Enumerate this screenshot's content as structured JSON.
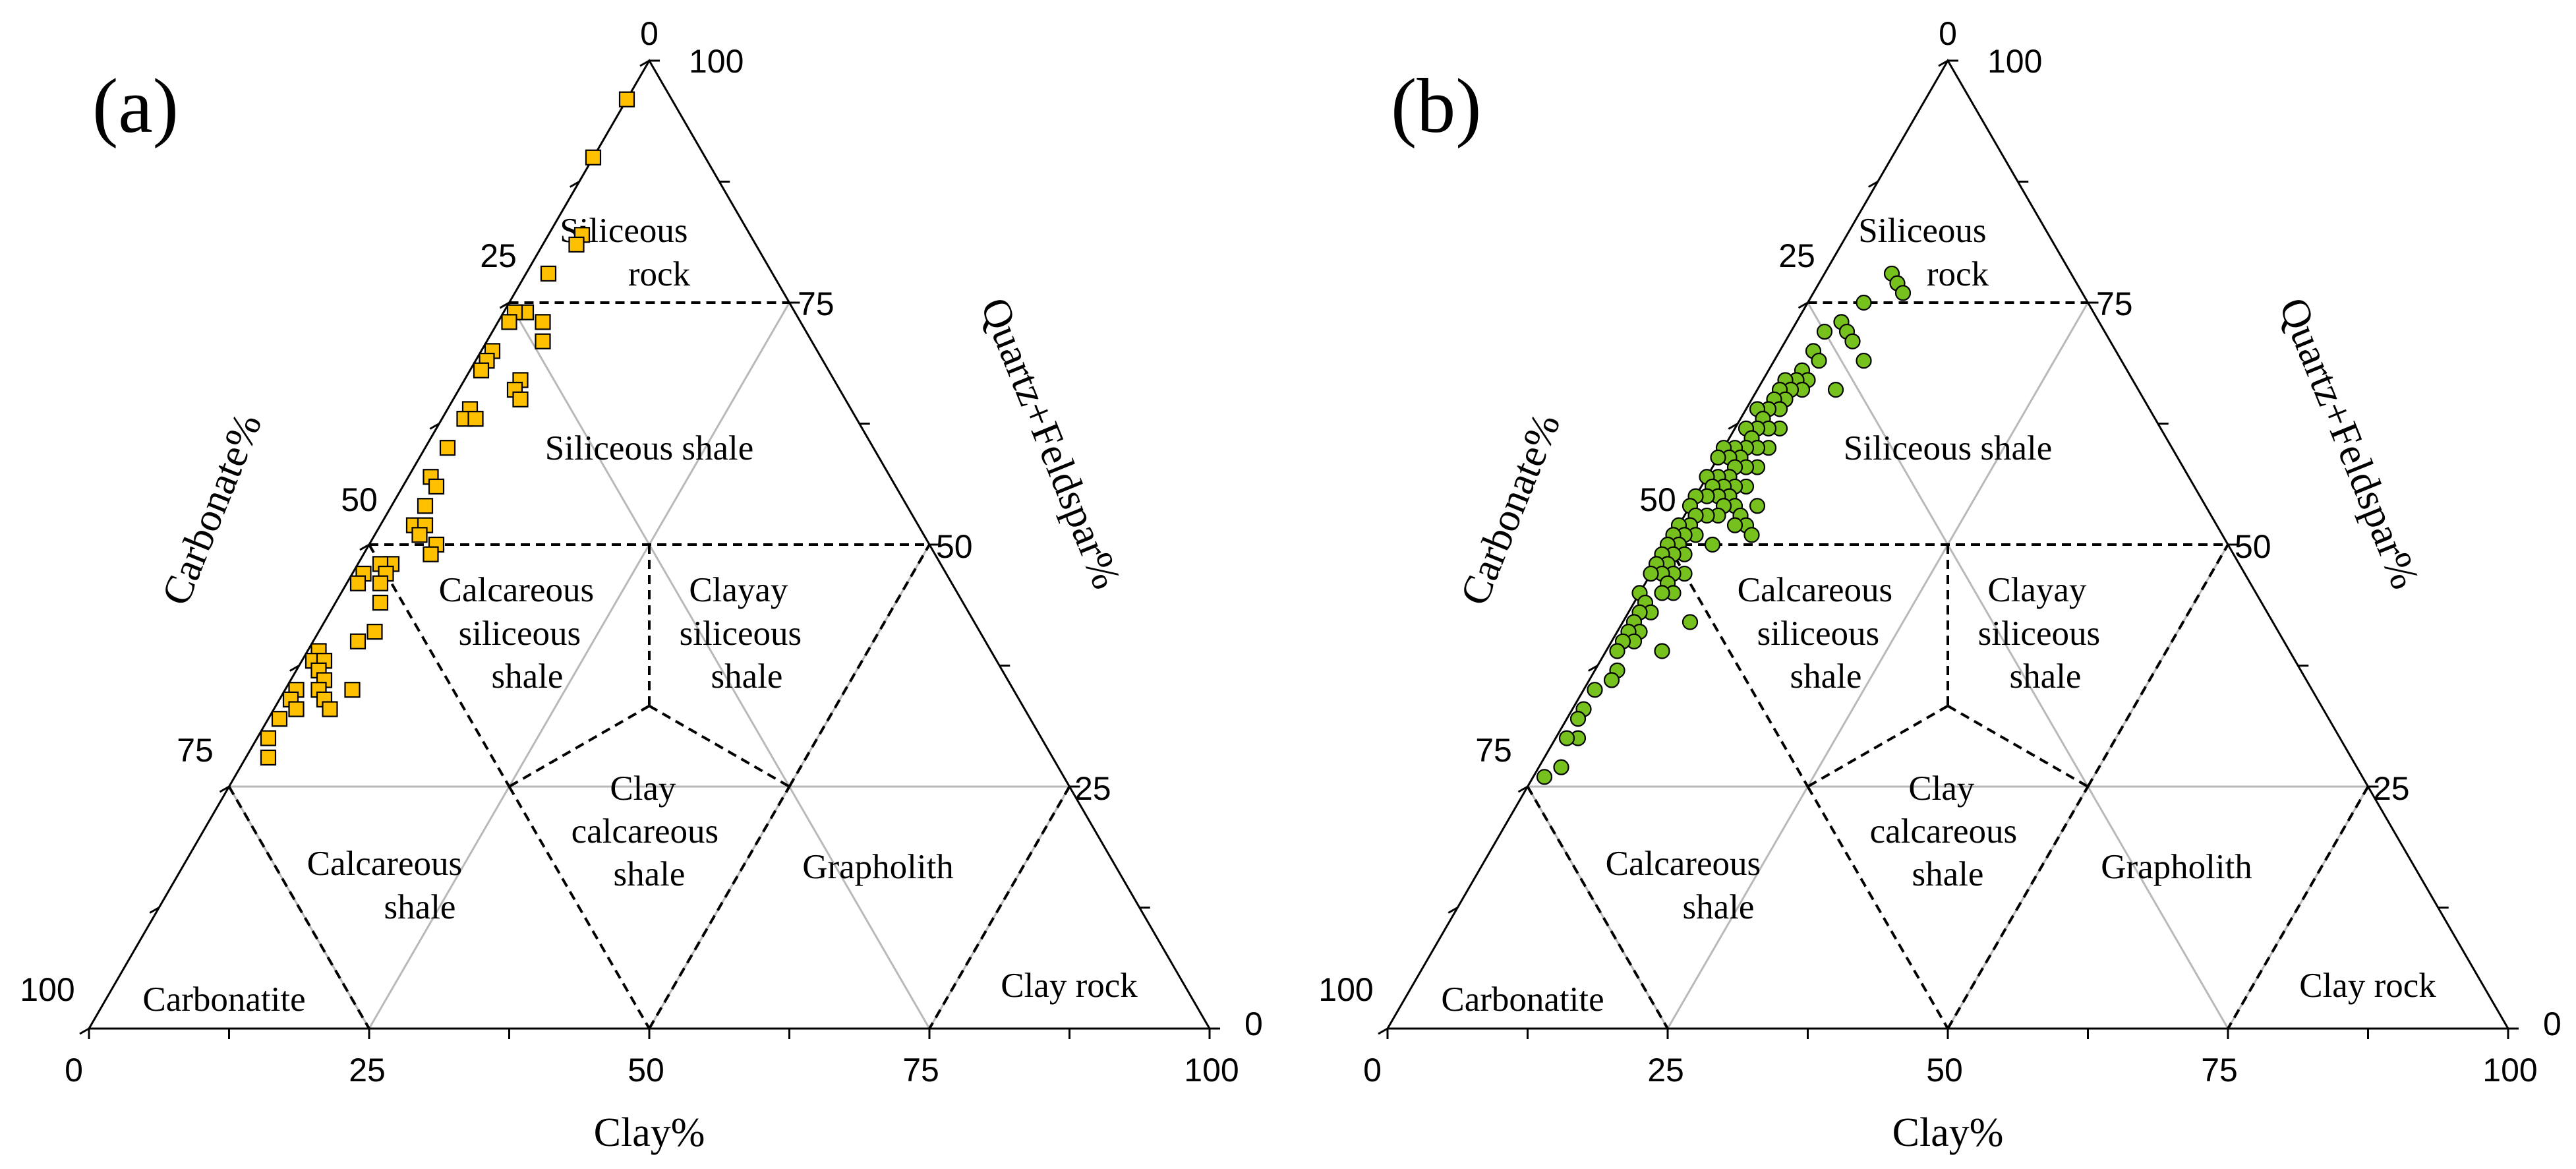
{
  "chart_data": [
    {
      "type": "scatter",
      "panel_label": "(a)",
      "marker": "square",
      "marker_color": "#FFC000",
      "axes": {
        "quartz_feldspar_title": "Quartz+Feldspar%",
        "carbonate_title": "Carbonate%",
        "clay_title": "Clay%",
        "ticks": [
          0,
          25,
          50,
          75,
          100
        ],
        "tick_labels": [
          "0",
          "25",
          "50",
          "75",
          "100"
        ]
      },
      "regions": [
        "Siliceous rock",
        "Siliceous shale",
        "Calcareous siliceous shale",
        "Clayay siliceous shale",
        "Calcareous shale",
        "Clay calcareous shale",
        "Grapholith",
        "Carbonatite",
        "Clay rock"
      ],
      "region_lines": [
        [
          "Siliceous",
          "rock"
        ],
        [
          "Siliceous shale"
        ],
        [
          "Calcareous",
          "siliceous",
          "shale"
        ],
        [
          "Clayay",
          "siliceous",
          "shale"
        ],
        [
          "Calcareous",
          "shale"
        ],
        [
          "Clay",
          "calcareous",
          "shale"
        ],
        [
          "Grapholith"
        ],
        [
          "Carbonatite"
        ],
        [
          "Clay rock"
        ]
      ],
      "points": [
        {
          "clay": 0,
          "carbonate": 4,
          "qf": 96
        },
        {
          "clay": 0,
          "carbonate": 10,
          "qf": 90
        },
        {
          "clay": 3,
          "carbonate": 15,
          "qf": 82
        },
        {
          "clay": 3,
          "carbonate": 16,
          "qf": 81
        },
        {
          "clay": 2,
          "carbonate": 20,
          "qf": 78
        },
        {
          "clay": 2,
          "carbonate": 24,
          "qf": 74
        },
        {
          "clay": 4,
          "carbonate": 23,
          "qf": 73
        },
        {
          "clay": 5,
          "carbonate": 24,
          "qf": 71
        },
        {
          "clay": 1,
          "carbonate": 25,
          "qf": 74
        },
        {
          "clay": 1,
          "carbonate": 26,
          "qf": 73
        },
        {
          "clay": 1,
          "carbonate": 29,
          "qf": 70
        },
        {
          "clay": 1,
          "carbonate": 30,
          "qf": 69
        },
        {
          "clay": 5,
          "carbonate": 28,
          "qf": 67
        },
        {
          "clay": 5,
          "carbonate": 29,
          "qf": 66
        },
        {
          "clay": 6,
          "carbonate": 29,
          "qf": 65
        },
        {
          "clay": 1,
          "carbonate": 31,
          "qf": 68
        },
        {
          "clay": 2,
          "carbonate": 34,
          "qf": 64
        },
        {
          "clay": 2,
          "carbonate": 35,
          "qf": 63
        },
        {
          "clay": 3,
          "carbonate": 34,
          "qf": 63
        },
        {
          "clay": 2,
          "carbonate": 38,
          "qf": 60
        },
        {
          "clay": 2,
          "carbonate": 41,
          "qf": 57
        },
        {
          "clay": 3,
          "carbonate": 41,
          "qf": 56
        },
        {
          "clay": 3,
          "carbonate": 43,
          "qf": 54
        },
        {
          "clay": 3,
          "carbonate": 45,
          "qf": 52
        },
        {
          "clay": 4,
          "carbonate": 44,
          "qf": 52
        },
        {
          "clay": 4,
          "carbonate": 45,
          "qf": 51
        },
        {
          "clay": 6,
          "carbonate": 44,
          "qf": 50
        },
        {
          "clay": 6,
          "carbonate": 45,
          "qf": 49
        },
        {
          "clay": 3,
          "carbonate": 49,
          "qf": 48
        },
        {
          "clay": 2,
          "carbonate": 50,
          "qf": 48
        },
        {
          "clay": 3,
          "carbonate": 50,
          "qf": 47
        },
        {
          "clay": 3,
          "carbonate": 51,
          "qf": 46
        },
        {
          "clay": 1,
          "carbonate": 52,
          "qf": 47
        },
        {
          "clay": 1,
          "carbonate": 53,
          "qf": 46
        },
        {
          "clay": 4,
          "carbonate": 52,
          "qf": 44
        },
        {
          "clay": 5,
          "carbonate": 54,
          "qf": 41
        },
        {
          "clay": 4,
          "carbonate": 56,
          "qf": 40
        },
        {
          "clay": 1,
          "carbonate": 60,
          "qf": 39
        },
        {
          "clay": 1,
          "carbonate": 61,
          "qf": 38
        },
        {
          "clay": 2,
          "carbonate": 60,
          "qf": 38
        },
        {
          "clay": 2,
          "carbonate": 61,
          "qf": 37
        },
        {
          "clay": 3,
          "carbonate": 61,
          "qf": 36
        },
        {
          "clay": 3,
          "carbonate": 62,
          "qf": 35
        },
        {
          "clay": 4,
          "carbonate": 62,
          "qf": 34
        },
        {
          "clay": 6,
          "carbonate": 59,
          "qf": 35
        },
        {
          "clay": 5,
          "carbonate": 62,
          "qf": 33
        },
        {
          "clay": 1,
          "carbonate": 64,
          "qf": 35
        },
        {
          "clay": 1,
          "carbonate": 65,
          "qf": 34
        },
        {
          "clay": 2,
          "carbonate": 65,
          "qf": 33
        },
        {
          "clay": 1,
          "carbonate": 67,
          "qf": 32
        },
        {
          "clay": 1,
          "carbonate": 69,
          "qf": 30
        },
        {
          "clay": 2,
          "carbonate": 70,
          "qf": 28
        }
      ]
    },
    {
      "type": "scatter",
      "panel_label": "(b)",
      "marker": "circle",
      "marker_color": "#76C11E",
      "axes": {
        "quartz_feldspar_title": "Quartz+Feldspar%",
        "carbonate_title": "Carbonate%",
        "clay_title": "Clay%",
        "ticks": [
          0,
          25,
          50,
          75,
          100
        ],
        "tick_labels": [
          "0",
          "25",
          "50",
          "75",
          "100"
        ]
      },
      "regions": [
        "Siliceous rock",
        "Siliceous shale",
        "Calcareous siliceous shale",
        "Clayay siliceous shale",
        "Calcareous shale",
        "Clay calcareous shale",
        "Grapholith",
        "Carbonatite",
        "Clay rock"
      ],
      "region_lines": [
        [
          "Siliceous",
          "rock"
        ],
        [
          "Siliceous shale"
        ],
        [
          "Calcareous",
          "siliceous",
          "shale"
        ],
        [
          "Clayay",
          "siliceous",
          "shale"
        ],
        [
          "Calcareous",
          "shale"
        ],
        [
          "Clay",
          "calcareous",
          "shale"
        ],
        [
          "Grapholith"
        ],
        [
          "Carbonatite"
        ],
        [
          "Clay rock"
        ]
      ],
      "points": [
        {
          "clay": 6,
          "carbonate": 16,
          "qf": 78
        },
        {
          "clay": 7,
          "carbonate": 16,
          "qf": 77
        },
        {
          "clay": 8,
          "carbonate": 16,
          "qf": 76
        },
        {
          "clay": 5,
          "carbonate": 20,
          "qf": 75
        },
        {
          "clay": 4,
          "carbonate": 23,
          "qf": 73
        },
        {
          "clay": 5,
          "carbonate": 23,
          "qf": 72
        },
        {
          "clay": 6,
          "carbonate": 23,
          "qf": 71
        },
        {
          "clay": 3,
          "carbonate": 25,
          "qf": 72
        },
        {
          "clay": 8,
          "carbonate": 23,
          "qf": 69
        },
        {
          "clay": 3,
          "carbonate": 27,
          "qf": 70
        },
        {
          "clay": 4,
          "carbonate": 27,
          "qf": 69
        },
        {
          "clay": 7,
          "carbonate": 27,
          "qf": 66
        },
        {
          "clay": 3,
          "carbonate": 29,
          "qf": 68
        },
        {
          "clay": 4,
          "carbonate": 29,
          "qf": 67
        },
        {
          "clay": 3,
          "carbonate": 30,
          "qf": 67
        },
        {
          "clay": 4,
          "carbonate": 30,
          "qf": 66
        },
        {
          "clay": 2,
          "carbonate": 31,
          "qf": 67
        },
        {
          "clay": 3,
          "carbonate": 31,
          "qf": 66
        },
        {
          "clay": 2,
          "carbonate": 32,
          "qf": 66
        },
        {
          "clay": 3,
          "carbonate": 32,
          "qf": 65
        },
        {
          "clay": 2,
          "carbonate": 33,
          "qf": 65
        },
        {
          "clay": 3,
          "carbonate": 33,
          "qf": 64
        },
        {
          "clay": 2,
          "carbonate": 34,
          "qf": 64
        },
        {
          "clay": 4,
          "carbonate": 34,
          "qf": 62
        },
        {
          "clay": 1,
          "carbonate": 35,
          "qf": 64
        },
        {
          "clay": 2,
          "carbonate": 35,
          "qf": 63
        },
        {
          "clay": 3,
          "carbonate": 35,
          "qf": 62
        },
        {
          "clay": 2,
          "carbonate": 36,
          "qf": 62
        },
        {
          "clay": 4,
          "carbonate": 36,
          "qf": 60
        },
        {
          "clay": 1,
          "carbonate": 37,
          "qf": 62
        },
        {
          "clay": 2,
          "carbonate": 37,
          "qf": 61
        },
        {
          "clay": 3,
          "carbonate": 37,
          "qf": 60
        },
        {
          "clay": 2,
          "carbonate": 38,
          "qf": 60
        },
        {
          "clay": 4,
          "carbonate": 38,
          "qf": 58
        },
        {
          "clay": 1,
          "carbonate": 39,
          "qf": 60
        },
        {
          "clay": 2,
          "carbonate": 39,
          "qf": 59
        },
        {
          "clay": 3,
          "carbonate": 39,
          "qf": 58
        },
        {
          "clay": 0,
          "carbonate": 40,
          "qf": 60
        },
        {
          "clay": 1,
          "carbonate": 40,
          "qf": 59
        },
        {
          "clay": 2,
          "carbonate": 40,
          "qf": 58
        },
        {
          "clay": 4,
          "carbonate": 40,
          "qf": 56
        },
        {
          "clay": 6,
          "carbonate": 40,
          "qf": 54
        },
        {
          "clay": 0,
          "carbonate": 41,
          "qf": 59
        },
        {
          "clay": 2,
          "carbonate": 41,
          "qf": 57
        },
        {
          "clay": 3,
          "carbonate": 41,
          "qf": 56
        },
        {
          "clay": 1,
          "carbonate": 42,
          "qf": 57
        },
        {
          "clay": 2,
          "carbonate": 42,
          "qf": 56
        },
        {
          "clay": 3,
          "carbonate": 42,
          "qf": 55
        },
        {
          "clay": 4,
          "carbonate": 42,
          "qf": 54
        },
        {
          "clay": 5,
          "carbonate": 42,
          "qf": 53
        },
        {
          "clay": 6,
          "carbonate": 42,
          "qf": 52
        },
        {
          "clay": 7,
          "carbonate": 42,
          "qf": 51
        },
        {
          "clay": 0,
          "carbonate": 43,
          "qf": 57
        },
        {
          "clay": 1,
          "carbonate": 43,
          "qf": 56
        },
        {
          "clay": 2,
          "carbonate": 43,
          "qf": 55
        },
        {
          "clay": 3,
          "carbonate": 43,
          "qf": 54
        },
        {
          "clay": 5,
          "carbonate": 43,
          "qf": 52
        },
        {
          "clay": 1,
          "carbonate": 44,
          "qf": 55
        },
        {
          "clay": 3,
          "carbonate": 44,
          "qf": 53
        },
        {
          "clay": 0,
          "carbonate": 45,
          "qf": 55
        },
        {
          "clay": 2,
          "carbonate": 45,
          "qf": 53
        },
        {
          "clay": 0,
          "carbonate": 46,
          "qf": 54
        },
        {
          "clay": 1,
          "carbonate": 46,
          "qf": 53
        },
        {
          "clay": 1,
          "carbonate": 47,
          "qf": 52
        },
        {
          "clay": 2,
          "carbonate": 47,
          "qf": 51
        },
        {
          "clay": 0,
          "carbonate": 48,
          "qf": 52
        },
        {
          "clay": 1,
          "carbonate": 48,
          "qf": 51
        },
        {
          "clay": 4,
          "carbonate": 46,
          "qf": 50
        },
        {
          "clay": 0,
          "carbonate": 49,
          "qf": 51
        },
        {
          "clay": 1,
          "carbonate": 49,
          "qf": 50
        },
        {
          "clay": 2,
          "carbonate": 49,
          "qf": 49
        },
        {
          "clay": 0,
          "carbonate": 50,
          "qf": 50
        },
        {
          "clay": 1,
          "carbonate": 50,
          "qf": 49
        },
        {
          "clay": 3,
          "carbonate": 50,
          "qf": 47
        },
        {
          "clay": 0,
          "carbonate": 51,
          "qf": 49
        },
        {
          "clay": 1,
          "carbonate": 51,
          "qf": 48
        },
        {
          "clay": 2,
          "carbonate": 51,
          "qf": 47
        },
        {
          "clay": 0,
          "carbonate": 52,
          "qf": 48
        },
        {
          "clay": 1,
          "carbonate": 52,
          "qf": 47
        },
        {
          "clay": 2,
          "carbonate": 52,
          "qf": 46
        },
        {
          "clay": 3,
          "carbonate": 52,
          "qf": 45
        },
        {
          "clay": 0,
          "carbonate": 53,
          "qf": 47
        },
        {
          "clay": 2,
          "carbonate": 53,
          "qf": 45
        },
        {
          "clay": 6,
          "carbonate": 52,
          "qf": 42
        },
        {
          "clay": 0,
          "carbonate": 55,
          "qf": 45
        },
        {
          "clay": 1,
          "carbonate": 55,
          "qf": 44
        },
        {
          "clay": 2,
          "carbonate": 55,
          "qf": 43
        },
        {
          "clay": 1,
          "carbonate": 56,
          "qf": 43
        },
        {
          "clay": 5,
          "carbonate": 56,
          "qf": 39
        },
        {
          "clay": 1,
          "carbonate": 57,
          "qf": 42
        },
        {
          "clay": 2,
          "carbonate": 57,
          "qf": 41
        },
        {
          "clay": 1,
          "carbonate": 58,
          "qf": 41
        },
        {
          "clay": 2,
          "carbonate": 58,
          "qf": 40
        },
        {
          "clay": 1,
          "carbonate": 59,
          "qf": 40
        },
        {
          "clay": 1,
          "carbonate": 60,
          "qf": 39
        },
        {
          "clay": 2,
          "carbonate": 61,
          "qf": 37
        },
        {
          "clay": 2,
          "carbonate": 62,
          "qf": 36
        },
        {
          "clay": 1,
          "carbonate": 64,
          "qf": 35
        },
        {
          "clay": 1,
          "carbonate": 66,
          "qf": 33
        },
        {
          "clay": 1,
          "carbonate": 67,
          "qf": 32
        },
        {
          "clay": 2,
          "carbonate": 68,
          "qf": 30
        },
        {
          "clay": 1,
          "carbonate": 69,
          "qf": 30
        },
        {
          "clay": 2,
          "carbonate": 71,
          "qf": 27
        },
        {
          "clay": 1,
          "carbonate": 73,
          "qf": 26
        }
      ]
    }
  ]
}
